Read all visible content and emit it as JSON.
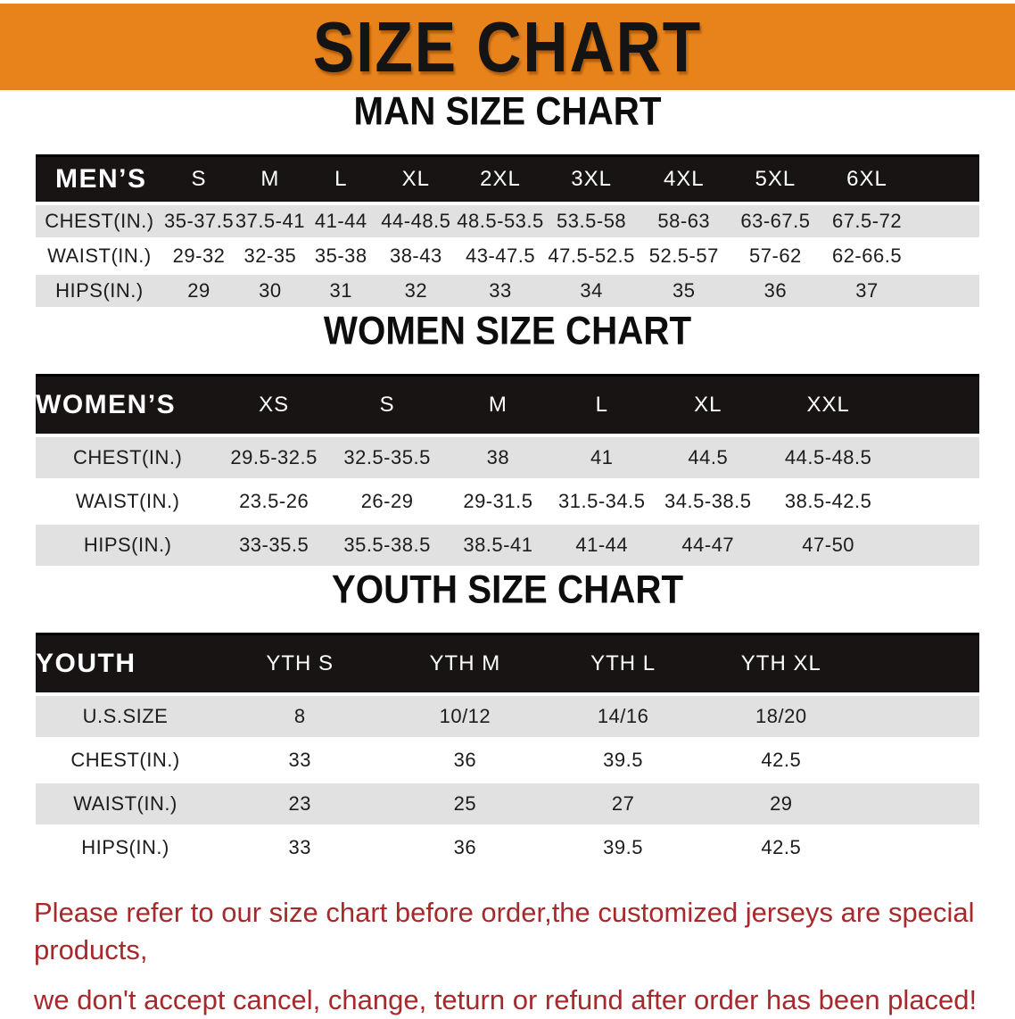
{
  "banner": {
    "title": "SIZE CHART",
    "bg_color": "#E8821A",
    "text_color": "#141414"
  },
  "sections": [
    {
      "heading": "MAN SIZE CHART",
      "table": {
        "header": [
          "MEN’S",
          "S",
          "M",
          "L",
          "XL",
          "2XL",
          "3XL",
          "4XL",
          "5XL",
          "6XL"
        ],
        "rows": [
          [
            "CHEST(IN.)",
            "35-37.5",
            "37.5-41",
            "41-44",
            "44-48.5",
            "48.5-53.5",
            "53.5-58",
            "58-63",
            "63-67.5",
            "67.5-72"
          ],
          [
            "WAIST(IN.)",
            "29-32",
            "32-35",
            "35-38",
            "38-43",
            "43-47.5",
            "47.5-52.5",
            "52.5-57",
            "57-62",
            "62-66.5"
          ],
          [
            "HIPS(IN.)",
            "29",
            "30",
            "31",
            "32",
            "33",
            "34",
            "35",
            "36",
            "37"
          ]
        ]
      }
    },
    {
      "heading": "WOMEN SIZE CHART",
      "table": {
        "header": [
          "WOMEN’S",
          "XS",
          "S",
          "M",
          "L",
          "XL",
          "XXL"
        ],
        "rows": [
          [
            "CHEST(IN.)",
            "29.5-32.5",
            "32.5-35.5",
            "38",
            "41",
            "44.5",
            "44.5-48.5"
          ],
          [
            "WAIST(IN.)",
            "23.5-26",
            "26-29",
            "29-31.5",
            "31.5-34.5",
            "34.5-38.5",
            "38.5-42.5"
          ],
          [
            "HIPS(IN.)",
            "33-35.5",
            "35.5-38.5",
            "38.5-41",
            "41-44",
            "44-47",
            "47-50"
          ]
        ]
      }
    },
    {
      "heading": "YOUTH SIZE CHART",
      "table": {
        "header": [
          "YOUTH",
          "YTH S",
          "YTH M",
          "YTH L",
          "YTH XL"
        ],
        "rows": [
          [
            "U.S.SIZE",
            "8",
            "10/12",
            "14/16",
            "18/20"
          ],
          [
            "CHEST(IN.)",
            "33",
            "36",
            "39.5",
            "42.5"
          ],
          [
            "WAIST(IN.)",
            "23",
            "25",
            "27",
            "29"
          ],
          [
            "HIPS(IN.)",
            "33",
            "36",
            "39.5",
            "42.5"
          ]
        ]
      }
    }
  ],
  "footer": {
    "line1": "Please refer to our size chart before order,the customized jerseys are special products,",
    "line2": "we don't accept cancel, change, teturn or refund after order has been placed!",
    "text_color": "#A62A2B"
  }
}
